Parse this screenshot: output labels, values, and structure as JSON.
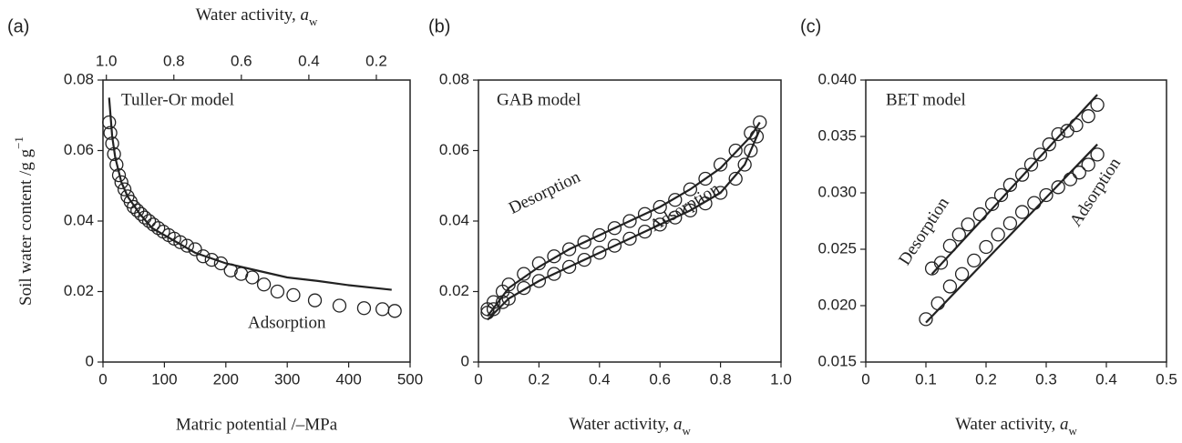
{
  "chart_data": [
    {
      "type": "scatter",
      "panel_label": "(a)",
      "xlabel": "Matric potential /–MPa",
      "ylabel": {
        "text": "Soil water content /g g",
        "sup": "−1"
      },
      "x2label": {
        "text": "Water activity, ",
        "var": "a",
        "sub": "w"
      },
      "xlim": [
        0,
        500
      ],
      "xticks": [
        0,
        100,
        200,
        300,
        400,
        500
      ],
      "ylim": [
        0,
        0.08
      ],
      "yticks": [
        0,
        0.02,
        0.04,
        0.06,
        0.08
      ],
      "x2lim": [
        1.01,
        0.1
      ],
      "x2ticks": [
        {
          "value": 1.0,
          "label": "1.0"
        },
        0.8,
        0.6,
        0.4,
        0.2
      ],
      "annotations": [
        "Tuller-Or model",
        "Adsorption"
      ],
      "series": [
        {
          "mode": "markers",
          "color": "#222222",
          "x": [
            10,
            12,
            15,
            18,
            22,
            26,
            30,
            35,
            40,
            45,
            50,
            56,
            62,
            68,
            75,
            82,
            90,
            98,
            107,
            116,
            126,
            137,
            150,
            163,
            177,
            192,
            208,
            225,
            243,
            262,
            284,
            310,
            345,
            385,
            425,
            455,
            475
          ],
          "values": [
            0.068,
            0.065,
            0.062,
            0.059,
            0.056,
            0.053,
            0.051,
            0.049,
            0.047,
            0.0455,
            0.044,
            0.043,
            0.042,
            0.041,
            0.04,
            0.039,
            0.038,
            0.037,
            0.036,
            0.035,
            0.034,
            0.033,
            0.032,
            0.03,
            0.029,
            0.028,
            0.026,
            0.025,
            0.024,
            0.022,
            0.02,
            0.019,
            0.0175,
            0.016,
            0.0153,
            0.015,
            0.0145
          ]
        },
        {
          "mode": "line",
          "color": "#222222",
          "x": [
            10,
            15,
            20,
            30,
            40,
            60,
            80,
            100,
            150,
            200,
            250,
            300,
            350,
            400,
            470
          ],
          "values": [
            0.075,
            0.064,
            0.058,
            0.051,
            0.047,
            0.042,
            0.038,
            0.036,
            0.031,
            0.028,
            0.026,
            0.024,
            0.023,
            0.0218,
            0.0205
          ]
        }
      ]
    },
    {
      "type": "scatter",
      "panel_label": "(b)",
      "xlabel": {
        "text": "Water activity, ",
        "var": "a",
        "sub": "w"
      },
      "xlim": [
        0,
        1.0
      ],
      "xticks": [
        0,
        0.2,
        0.4,
        0.6,
        0.8,
        {
          "value": 1.0,
          "label": "1.0"
        }
      ],
      "ylim": [
        0,
        0.08
      ],
      "yticks": [
        0,
        0.02,
        0.04,
        0.06,
        0.08
      ],
      "annotations": [
        "GAB model",
        "Desorption",
        "Adsorption"
      ],
      "series": [
        {
          "mode": "markers",
          "color": "#222222",
          "x": [
            0.03,
            0.05,
            0.08,
            0.1,
            0.15,
            0.2,
            0.25,
            0.3,
            0.35,
            0.4,
            0.45,
            0.5,
            0.55,
            0.6,
            0.65,
            0.7,
            0.75,
            0.8,
            0.85,
            0.9,
            0.93
          ],
          "values": [
            0.015,
            0.017,
            0.02,
            0.022,
            0.025,
            0.028,
            0.03,
            0.032,
            0.034,
            0.036,
            0.038,
            0.04,
            0.042,
            0.044,
            0.046,
            0.049,
            0.052,
            0.056,
            0.06,
            0.065,
            0.068
          ]
        },
        {
          "mode": "markers",
          "color": "#222222",
          "x": [
            0.03,
            0.05,
            0.08,
            0.1,
            0.15,
            0.2,
            0.25,
            0.3,
            0.35,
            0.4,
            0.45,
            0.5,
            0.55,
            0.6,
            0.65,
            0.7,
            0.75,
            0.8,
            0.85,
            0.88,
            0.9,
            0.92
          ],
          "values": [
            0.014,
            0.015,
            0.017,
            0.018,
            0.021,
            0.023,
            0.025,
            0.027,
            0.029,
            0.031,
            0.033,
            0.035,
            0.037,
            0.039,
            0.041,
            0.043,
            0.045,
            0.048,
            0.052,
            0.056,
            0.06,
            0.064
          ]
        },
        {
          "mode": "line",
          "color": "#222222",
          "x": [
            0.03,
            0.1,
            0.2,
            0.3,
            0.4,
            0.5,
            0.6,
            0.7,
            0.8,
            0.9,
            0.93
          ],
          "values": [
            0.013,
            0.021,
            0.027,
            0.032,
            0.036,
            0.04,
            0.044,
            0.049,
            0.055,
            0.064,
            0.068
          ]
        },
        {
          "mode": "line",
          "color": "#222222",
          "x": [
            0.03,
            0.1,
            0.2,
            0.3,
            0.4,
            0.5,
            0.6,
            0.7,
            0.8,
            0.88,
            0.93
          ],
          "values": [
            0.012,
            0.018,
            0.023,
            0.027,
            0.031,
            0.035,
            0.039,
            0.043,
            0.048,
            0.056,
            0.066
          ]
        }
      ]
    },
    {
      "type": "scatter",
      "panel_label": "(c)",
      "xlabel": {
        "text": "Water activity, ",
        "var": "a",
        "sub": "w"
      },
      "xlim": [
        0,
        0.5
      ],
      "xticks": [
        0,
        0.1,
        0.2,
        0.3,
        0.4,
        0.5
      ],
      "ylim": [
        0.015,
        0.04
      ],
      "yticks": [
        {
          "value": 0.015,
          "label": "0.015"
        },
        {
          "value": 0.02,
          "label": "0.020"
        },
        {
          "value": 0.025,
          "label": "0.025"
        },
        {
          "value": 0.03,
          "label": "0.030"
        },
        {
          "value": 0.035,
          "label": "0.035"
        },
        {
          "value": 0.04,
          "label": "0.040"
        }
      ],
      "annotations": [
        "BET model",
        "Desorption",
        "Adsorption"
      ],
      "series": [
        {
          "mode": "markers",
          "color": "#222222",
          "x": [
            0.11,
            0.125,
            0.14,
            0.155,
            0.17,
            0.19,
            0.21,
            0.225,
            0.24,
            0.26,
            0.275,
            0.29,
            0.305,
            0.32,
            0.335,
            0.35,
            0.37,
            0.385
          ],
          "values": [
            0.0233,
            0.0238,
            0.0253,
            0.0263,
            0.0272,
            0.0281,
            0.029,
            0.0298,
            0.0307,
            0.0316,
            0.0325,
            0.0334,
            0.0343,
            0.0352,
            0.0355,
            0.036,
            0.0368,
            0.0378
          ]
        },
        {
          "mode": "markers",
          "color": "#222222",
          "x": [
            0.1,
            0.12,
            0.14,
            0.16,
            0.18,
            0.2,
            0.22,
            0.24,
            0.26,
            0.28,
            0.3,
            0.32,
            0.34,
            0.355,
            0.37,
            0.385
          ],
          "values": [
            0.0188,
            0.0202,
            0.0217,
            0.0228,
            0.024,
            0.0252,
            0.0263,
            0.0273,
            0.0283,
            0.0291,
            0.0298,
            0.0305,
            0.0312,
            0.0318,
            0.0325,
            0.0334
          ]
        },
        {
          "mode": "line",
          "color": "#222222",
          "x": [
            0.11,
            0.385
          ],
          "values": [
            0.0228,
            0.0387
          ]
        },
        {
          "mode": "line",
          "color": "#222222",
          "x": [
            0.1,
            0.385
          ],
          "values": [
            0.0185,
            0.0343
          ]
        }
      ]
    }
  ]
}
